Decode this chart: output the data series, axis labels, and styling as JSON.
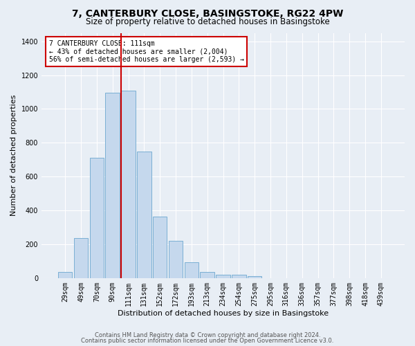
{
  "title": "7, CANTERBURY CLOSE, BASINGSTOKE, RG22 4PW",
  "subtitle": "Size of property relative to detached houses in Basingstoke",
  "xlabel": "Distribution of detached houses by size in Basingstoke",
  "ylabel": "Number of detached properties",
  "bar_values": [
    38,
    235,
    710,
    1095,
    1110,
    750,
    365,
    220,
    95,
    35,
    20,
    20,
    10,
    0,
    0,
    0,
    0,
    0,
    0,
    0,
    0
  ],
  "bar_labels": [
    "29sqm",
    "49sqm",
    "70sqm",
    "90sqm",
    "111sqm",
    "131sqm",
    "152sqm",
    "172sqm",
    "193sqm",
    "213sqm",
    "234sqm",
    "254sqm",
    "275sqm",
    "295sqm",
    "316sqm",
    "336sqm",
    "357sqm",
    "377sqm",
    "398sqm",
    "418sqm",
    "439sqm"
  ],
  "bar_color": "#c5d8ed",
  "bar_edge_color": "#7aafd4",
  "vline_color": "#cc0000",
  "annotation_text": "7 CANTERBURY CLOSE: 111sqm\n← 43% of detached houses are smaller (2,004)\n56% of semi-detached houses are larger (2,593) →",
  "annotation_box_color": "#cc0000",
  "ylim": [
    0,
    1450
  ],
  "yticks": [
    0,
    200,
    400,
    600,
    800,
    1000,
    1200,
    1400
  ],
  "footer_line1": "Contains HM Land Registry data © Crown copyright and database right 2024.",
  "footer_line2": "Contains public sector information licensed under the Open Government Licence v3.0.",
  "bg_color": "#e8eef5",
  "plot_bg_color": "#e8eef5",
  "grid_color": "#ffffff",
  "title_fontsize": 10,
  "subtitle_fontsize": 8.5,
  "axis_label_fontsize": 8,
  "tick_fontsize": 7,
  "footer_fontsize": 6.0
}
